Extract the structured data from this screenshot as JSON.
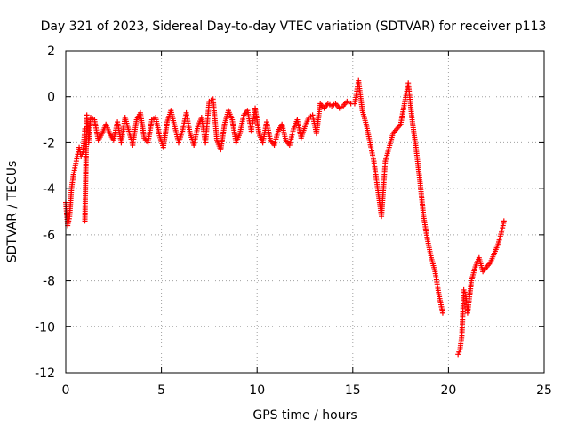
{
  "chart_data": {
    "type": "scatter",
    "title": "Day 321 of 2023, Sidereal Day-to-day VTEC variation (SDTVAR) for receiver p113",
    "xlabel": "GPS time / hours",
    "ylabel": "SDTVAR / TECUs",
    "xlim": [
      0,
      25
    ],
    "ylim": [
      -12,
      2
    ],
    "xticks": [
      0,
      5,
      10,
      15,
      20,
      25
    ],
    "yticks": [
      -12,
      -10,
      -8,
      -6,
      -4,
      -2,
      0,
      2
    ],
    "grid": true,
    "marker": "plus",
    "colors": {
      "series": "#ff0000",
      "axis": "#000000",
      "grid": "#a0a0a0"
    },
    "series": [
      {
        "name": "p113",
        "x": [
          0.0,
          0.1,
          0.2,
          0.3,
          0.4,
          0.5,
          0.6,
          0.7,
          0.8,
          0.9,
          1.0,
          1.0,
          1.1,
          1.2,
          1.3,
          1.5,
          1.7,
          1.9,
          2.1,
          2.3,
          2.5,
          2.7,
          2.9,
          3.1,
          3.3,
          3.5,
          3.7,
          3.9,
          4.1,
          4.3,
          4.5,
          4.7,
          4.9,
          5.1,
          5.3,
          5.5,
          5.7,
          5.9,
          6.1,
          6.3,
          6.5,
          6.7,
          6.9,
          7.1,
          7.3,
          7.5,
          7.7,
          7.9,
          8.1,
          8.3,
          8.5,
          8.7,
          8.9,
          9.1,
          9.3,
          9.5,
          9.7,
          9.9,
          10.1,
          10.3,
          10.5,
          10.7,
          10.9,
          11.1,
          11.3,
          11.5,
          11.7,
          11.9,
          12.1,
          12.3,
          12.5,
          12.7,
          12.9,
          13.1,
          13.3,
          13.5,
          13.7,
          13.9,
          14.1,
          14.3,
          14.5,
          14.7,
          14.9,
          15.1,
          15.3,
          15.5,
          15.7,
          15.9,
          16.1,
          16.3,
          16.5,
          16.7,
          16.9,
          17.1,
          17.3,
          17.5,
          17.7,
          17.9,
          18.1,
          18.3,
          18.5,
          18.7,
          18.9,
          19.1,
          19.3,
          19.5,
          19.7,
          20.5,
          20.6,
          20.7,
          20.8,
          20.9,
          21.0,
          21.2,
          21.4,
          21.6,
          21.8,
          22.0,
          22.2,
          22.4,
          22.6,
          22.8,
          22.9
        ],
        "y": [
          -4.6,
          -5.6,
          -5.2,
          -4.0,
          -3.4,
          -3.0,
          -2.6,
          -2.2,
          -2.6,
          -2.4,
          -1.4,
          -5.4,
          -0.8,
          -2.0,
          -0.9,
          -1.0,
          -1.9,
          -1.6,
          -1.2,
          -1.6,
          -1.9,
          -1.1,
          -2.0,
          -0.9,
          -1.5,
          -2.1,
          -1.0,
          -0.7,
          -1.8,
          -2.0,
          -1.0,
          -0.9,
          -1.7,
          -2.2,
          -1.1,
          -0.6,
          -1.3,
          -2.0,
          -1.5,
          -0.7,
          -1.6,
          -2.1,
          -1.3,
          -0.9,
          -2.0,
          -0.2,
          -0.1,
          -1.9,
          -2.3,
          -1.2,
          -0.6,
          -1.0,
          -2.0,
          -1.6,
          -0.8,
          -0.6,
          -1.5,
          -0.5,
          -1.6,
          -2.0,
          -1.1,
          -1.9,
          -2.1,
          -1.5,
          -1.2,
          -1.9,
          -2.1,
          -1.4,
          -1.0,
          -1.8,
          -1.3,
          -0.9,
          -0.8,
          -1.6,
          -0.3,
          -0.5,
          -0.3,
          -0.4,
          -0.3,
          -0.5,
          -0.4,
          -0.2,
          -0.3,
          -0.3,
          0.7,
          -0.6,
          -1.2,
          -2.0,
          -2.8,
          -4.0,
          -5.2,
          -2.8,
          -2.2,
          -1.6,
          -1.4,
          -1.2,
          -0.3,
          0.6,
          -1.0,
          -2.2,
          -3.6,
          -5.2,
          -6.2,
          -7.0,
          -7.6,
          -8.6,
          -9.4,
          -11.2,
          -11.0,
          -10.4,
          -8.4,
          -8.6,
          -9.4,
          -8.0,
          -7.4,
          -7.0,
          -7.6,
          -7.4,
          -7.2,
          -6.8,
          -6.4,
          -5.8,
          -5.4
        ]
      }
    ]
  }
}
